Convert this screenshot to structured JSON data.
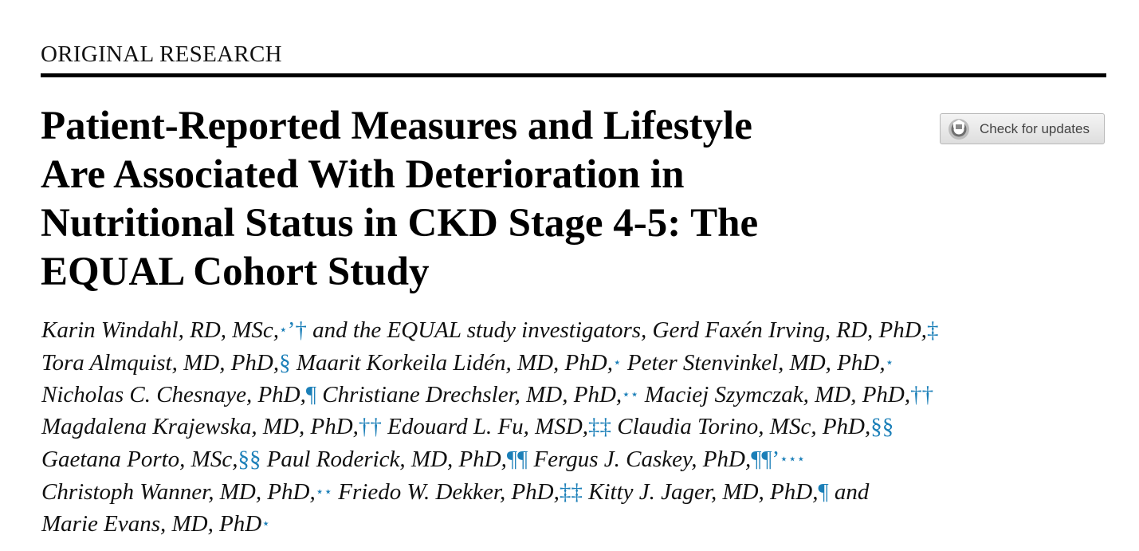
{
  "header": {
    "section_label": "ORIGINAL RESEARCH"
  },
  "title": {
    "lines": [
      "Patient-Reported Measures and Lifestyle",
      "Are Associated With Deterioration in",
      "Nutritional Status in CKD Stage 4-5: The",
      "EQUAL Cohort Study"
    ]
  },
  "check_updates": {
    "label": "Check for updates",
    "icon": "check-for-updates-icon"
  },
  "authors": {
    "affiliation_color": "#1b7fb8",
    "lines": [
      [
        {
          "t": "Karin Windahl, RD, MSc,"
        },
        {
          "t": "⋆",
          "a": 1
        },
        {
          "t": "’",
          "a": 1
        },
        {
          "t": "†",
          "a": 1
        },
        {
          "t": " and the EQUAL study investigators, Gerd Faxén Irving, RD, PhD,"
        },
        {
          "t": "‡",
          "a": 1
        }
      ],
      [
        {
          "t": "Tora Almquist, MD, PhD,"
        },
        {
          "t": "§",
          "a": 1
        },
        {
          "t": " Maarit Korkeila Lidén, MD, PhD,"
        },
        {
          "t": "⋆",
          "a": 1
        },
        {
          "t": " Peter Stenvinkel, MD, PhD,"
        },
        {
          "t": "⋆",
          "a": 1
        }
      ],
      [
        {
          "t": "Nicholas C. Chesnaye, PhD,"
        },
        {
          "t": "¶",
          "a": 1
        },
        {
          "t": " Christiane Drechsler, MD, PhD,"
        },
        {
          "t": "⋆⋆",
          "a": 1
        },
        {
          "t": " Maciej Szymczak, MD, PhD,"
        },
        {
          "t": "††",
          "a": 1
        }
      ],
      [
        {
          "t": "Magdalena Krajewska, MD, PhD,"
        },
        {
          "t": "††",
          "a": 1
        },
        {
          "t": " Edouard L. Fu, MSD,"
        },
        {
          "t": "‡‡",
          "a": 1
        },
        {
          "t": " Claudia Torino, MSc, PhD,"
        },
        {
          "t": "§§",
          "a": 1
        }
      ],
      [
        {
          "t": "Gaetana Porto, MSc,"
        },
        {
          "t": "§§",
          "a": 1
        },
        {
          "t": " Paul Roderick, MD, PhD,"
        },
        {
          "t": "¶¶",
          "a": 1
        },
        {
          "t": " Fergus J. Caskey, PhD,"
        },
        {
          "t": "¶¶",
          "a": 1
        },
        {
          "t": "’",
          "a": 1
        },
        {
          "t": "⋆⋆⋆",
          "a": 1
        }
      ],
      [
        {
          "t": "Christoph Wanner, MD, PhD,"
        },
        {
          "t": "⋆⋆",
          "a": 1
        },
        {
          "t": " Friedo W. Dekker, PhD,"
        },
        {
          "t": "‡‡",
          "a": 1
        },
        {
          "t": " Kitty J. Jager, MD, PhD,"
        },
        {
          "t": "¶",
          "a": 1
        },
        {
          "t": " and"
        }
      ],
      [
        {
          "t": "Marie Evans, MD, PhD"
        },
        {
          "t": "⋆",
          "a": 1
        }
      ]
    ]
  }
}
